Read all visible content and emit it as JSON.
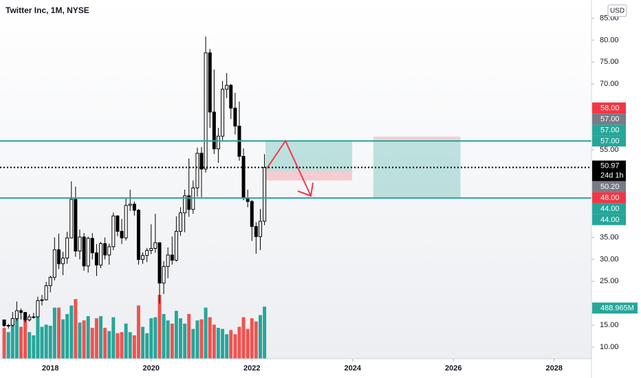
{
  "chart_data": {
    "type": "candlestick",
    "title": "Twitter Inc, 1M, NYSE",
    "currency": "USD",
    "x": [
      2017.083,
      2017.167,
      2017.25,
      2017.333,
      2017.417,
      2017.5,
      2017.583,
      2017.667,
      2017.75,
      2017.833,
      2017.917,
      2018.0,
      2018.083,
      2018.167,
      2018.25,
      2018.333,
      2018.417,
      2018.5,
      2018.583,
      2018.667,
      2018.75,
      2018.833,
      2018.917,
      2019.0,
      2019.083,
      2019.167,
      2019.25,
      2019.333,
      2019.417,
      2019.5,
      2019.583,
      2019.667,
      2019.75,
      2019.833,
      2019.917,
      2020.0,
      2020.083,
      2020.167,
      2020.25,
      2020.333,
      2020.417,
      2020.5,
      2020.583,
      2020.667,
      2020.75,
      2020.833,
      2020.917,
      2021.0,
      2021.083,
      2021.167,
      2021.25,
      2021.333,
      2021.417,
      2021.5,
      2021.583,
      2021.667,
      2021.75,
      2021.833,
      2021.917,
      2022.0,
      2022.083,
      2022.167,
      2022.25
    ],
    "open": [
      16.2,
      14.9,
      15.0,
      16.5,
      18.3,
      17.9,
      16.2,
      16.9,
      16.9,
      20.6,
      20.8,
      24.0,
      25.9,
      32.2,
      29.0,
      30.3,
      34.9,
      43.7,
      31.9,
      35.1,
      28.5,
      34.8,
      31.5,
      28.7,
      33.6,
      31.0,
      32.9,
      39.9,
      36.4,
      34.9,
      42.3,
      42.6,
      41.2,
      30.0,
      30.9,
      32.05,
      32.5,
      33.8,
      24.6,
      28.4,
      31.0,
      29.8,
      36.4,
      40.6,
      44.5,
      41.4,
      46.3,
      54.2,
      50.6,
      77.1,
      63.6,
      55.2,
      58.1,
      68.8,
      69.7,
      64.5,
      60.4,
      53.5,
      43.9,
      43.2,
      37.5,
      35.2,
      38.7
    ],
    "high": [
      16.3,
      15.3,
      18.0,
      20.4,
      18.8,
      18.0,
      17.5,
      17.8,
      21.5,
      21.9,
      24.9,
      26.3,
      35.0,
      35.9,
      31.7,
      36.3,
      47.8,
      46.6,
      36.8,
      36.0,
      35.2,
      36.0,
      33.5,
      34.0,
      35.0,
      33.6,
      40.7,
      40.1,
      39.2,
      43.9,
      45.9,
      43.2,
      41.5,
      31.6,
      32.6,
      38.0,
      40.4,
      33.9,
      29.6,
      32.7,
      35.2,
      39.8,
      41.9,
      45.9,
      53.0,
      48.0,
      55.5,
      55.6,
      80.8,
      78.0,
      73.3,
      60.0,
      70.7,
      72.5,
      70.0,
      68.0,
      66.0,
      55.3,
      45.9,
      43.5,
      38.5,
      41.5,
      54.0
    ],
    "low": [
      14.6,
      14.2,
      14.7,
      16.0,
      16.3,
      15.6,
      15.8,
      16.5,
      16.7,
      19.5,
      20.6,
      22.5,
      25.2,
      27.8,
      26.4,
      29.0,
      34.8,
      30.6,
      30.0,
      27.4,
      27.0,
      30.0,
      26.2,
      28.0,
      30.0,
      28.8,
      32.1,
      35.3,
      33.5,
      34.3,
      41.0,
      40.0,
      28.8,
      29.0,
      29.4,
      31.2,
      31.5,
      19.9,
      22.1,
      25.7,
      28.8,
      29.5,
      35.4,
      36.2,
      39.7,
      40.4,
      44.3,
      44.2,
      49.8,
      60.0,
      54.0,
      52.0,
      57.2,
      66.8,
      62.0,
      58.5,
      52.5,
      43.5,
      41.9,
      34.2,
      31.3,
      32.1,
      37.8
    ],
    "close": [
      14.9,
      14.95,
      16.5,
      18.3,
      17.9,
      16.2,
      16.9,
      16.9,
      20.6,
      20.8,
      24.0,
      25.9,
      32.2,
      29.0,
      30.3,
      34.9,
      43.7,
      31.9,
      35.1,
      28.5,
      34.8,
      31.5,
      28.7,
      33.6,
      31.0,
      32.9,
      39.9,
      36.4,
      34.9,
      42.3,
      42.6,
      41.2,
      29.97,
      30.9,
      32.05,
      32.5,
      33.8,
      24.6,
      28.4,
      31.0,
      29.8,
      36.4,
      40.6,
      44.5,
      41.4,
      46.3,
      54.2,
      50.6,
      77.1,
      63.6,
      55.2,
      58.1,
      68.8,
      69.7,
      64.5,
      60.4,
      53.5,
      43.9,
      43.2,
      37.5,
      35.2,
      38.7,
      50.97
    ],
    "volume": [
      290,
      250,
      370,
      420,
      300,
      380,
      250,
      220,
      390,
      300,
      320,
      310,
      480,
      480,
      370,
      420,
      500,
      560,
      340,
      360,
      400,
      290,
      380,
      400,
      290,
      260,
      390,
      240,
      250,
      330,
      250,
      220,
      500,
      300,
      240,
      380,
      390,
      600,
      420,
      360,
      330,
      450,
      380,
      330,
      420,
      280,
      360,
      370,
      480,
      390,
      320,
      290,
      280,
      230,
      270,
      230,
      300,
      390,
      280,
      380,
      350,
      410,
      488.965
    ],
    "volume_label": "488.965M",
    "vlim": [
      0,
      600
    ],
    "up_color": "#ffffff",
    "down_color": "#000000",
    "volume_up_color": "#26a69a",
    "volume_down_color": "#ef5350",
    "xlim": [
      2017.0,
      2028.74
    ],
    "xticks": [
      2018,
      2020,
      2022,
      2024,
      2026,
      2028
    ],
    "ylim": [
      7.34,
      89.15
    ],
    "yticks": [
      {
        "value": 10,
        "label": "10.00"
      },
      {
        "value": 15,
        "label": "15.00"
      },
      {
        "value": 25,
        "label": "25.00"
      },
      {
        "value": 30,
        "label": "30.00"
      },
      {
        "value": 35,
        "label": "35.00"
      },
      {
        "value": 55,
        "label": "55.00"
      },
      {
        "value": 70,
        "label": "70.00"
      },
      {
        "value": 75,
        "label": "75.00"
      },
      {
        "value": 80,
        "label": "80.00"
      },
      {
        "value": 85,
        "label": "85.00"
      }
    ],
    "hlines": [
      57,
      44
    ],
    "hline_color": "#26a69a",
    "current": {
      "value": 50.97,
      "label": "50.97",
      "countdown": "24d 1h"
    },
    "badges_above": [
      {
        "value": 57,
        "label": "57.00",
        "color": "#26a69a"
      },
      {
        "value": 57,
        "label": "57.00",
        "color": "#26a69a"
      },
      {
        "value": 57,
        "label": "57.00",
        "color": "#787b86"
      },
      {
        "value": 58,
        "label": "58.00",
        "color": "#f23645"
      }
    ],
    "badges_below": [
      {
        "value": 50.2,
        "label": "50.20",
        "color": "#787b86"
      },
      {
        "value": 48,
        "label": "48.00",
        "color": "#f23645"
      },
      {
        "value": 44,
        "label": "44.00",
        "color": "#26a69a"
      },
      {
        "value": 44,
        "label": "44.00",
        "color": "#26a69a"
      }
    ],
    "positions": [
      {
        "x": [
          2022.27,
          2023.99
        ],
        "entry": 50.2,
        "target": 57,
        "stop": 48
      },
      {
        "x": [
          2024.41,
          2026.14
        ],
        "entry": 57,
        "target": 44,
        "stop": 58
      }
    ]
  }
}
